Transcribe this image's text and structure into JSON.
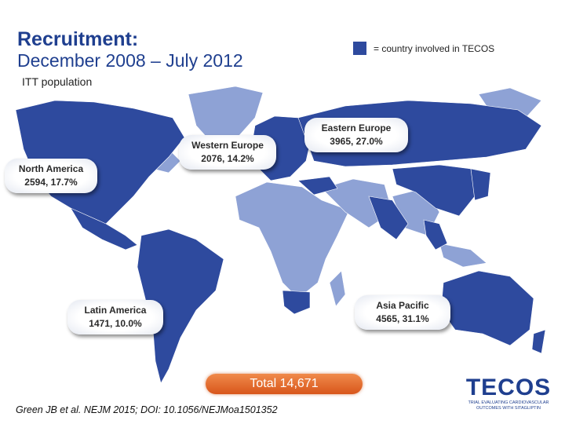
{
  "header": {
    "title": "Recruitment:",
    "subtitle": "December 2008 – July 2012",
    "population": "ITT population"
  },
  "legend": "= country involved in TECOS",
  "regions": [
    {
      "name": "North America",
      "detail": "2594, 17.7%"
    },
    {
      "name": "Western Europe",
      "detail": "2076, 14.2%"
    },
    {
      "name": "Eastern Europe",
      "detail": "3965, 27.0%"
    },
    {
      "name": "Latin America",
      "detail": "1471, 10.0%"
    },
    {
      "name": "Asia Pacific",
      "detail": "4565, 31.1%"
    }
  ],
  "total": "Total 14,671",
  "citation": "Green JB et al. NEJM 2015; DOI: 10.1056/NEJMoa1501352",
  "logo": {
    "word": "TECOS",
    "tagline": "TRIAL EVALUATING CARDIOVASCULAR OUTCOMES WITH SITAGLIPTIN"
  }
}
